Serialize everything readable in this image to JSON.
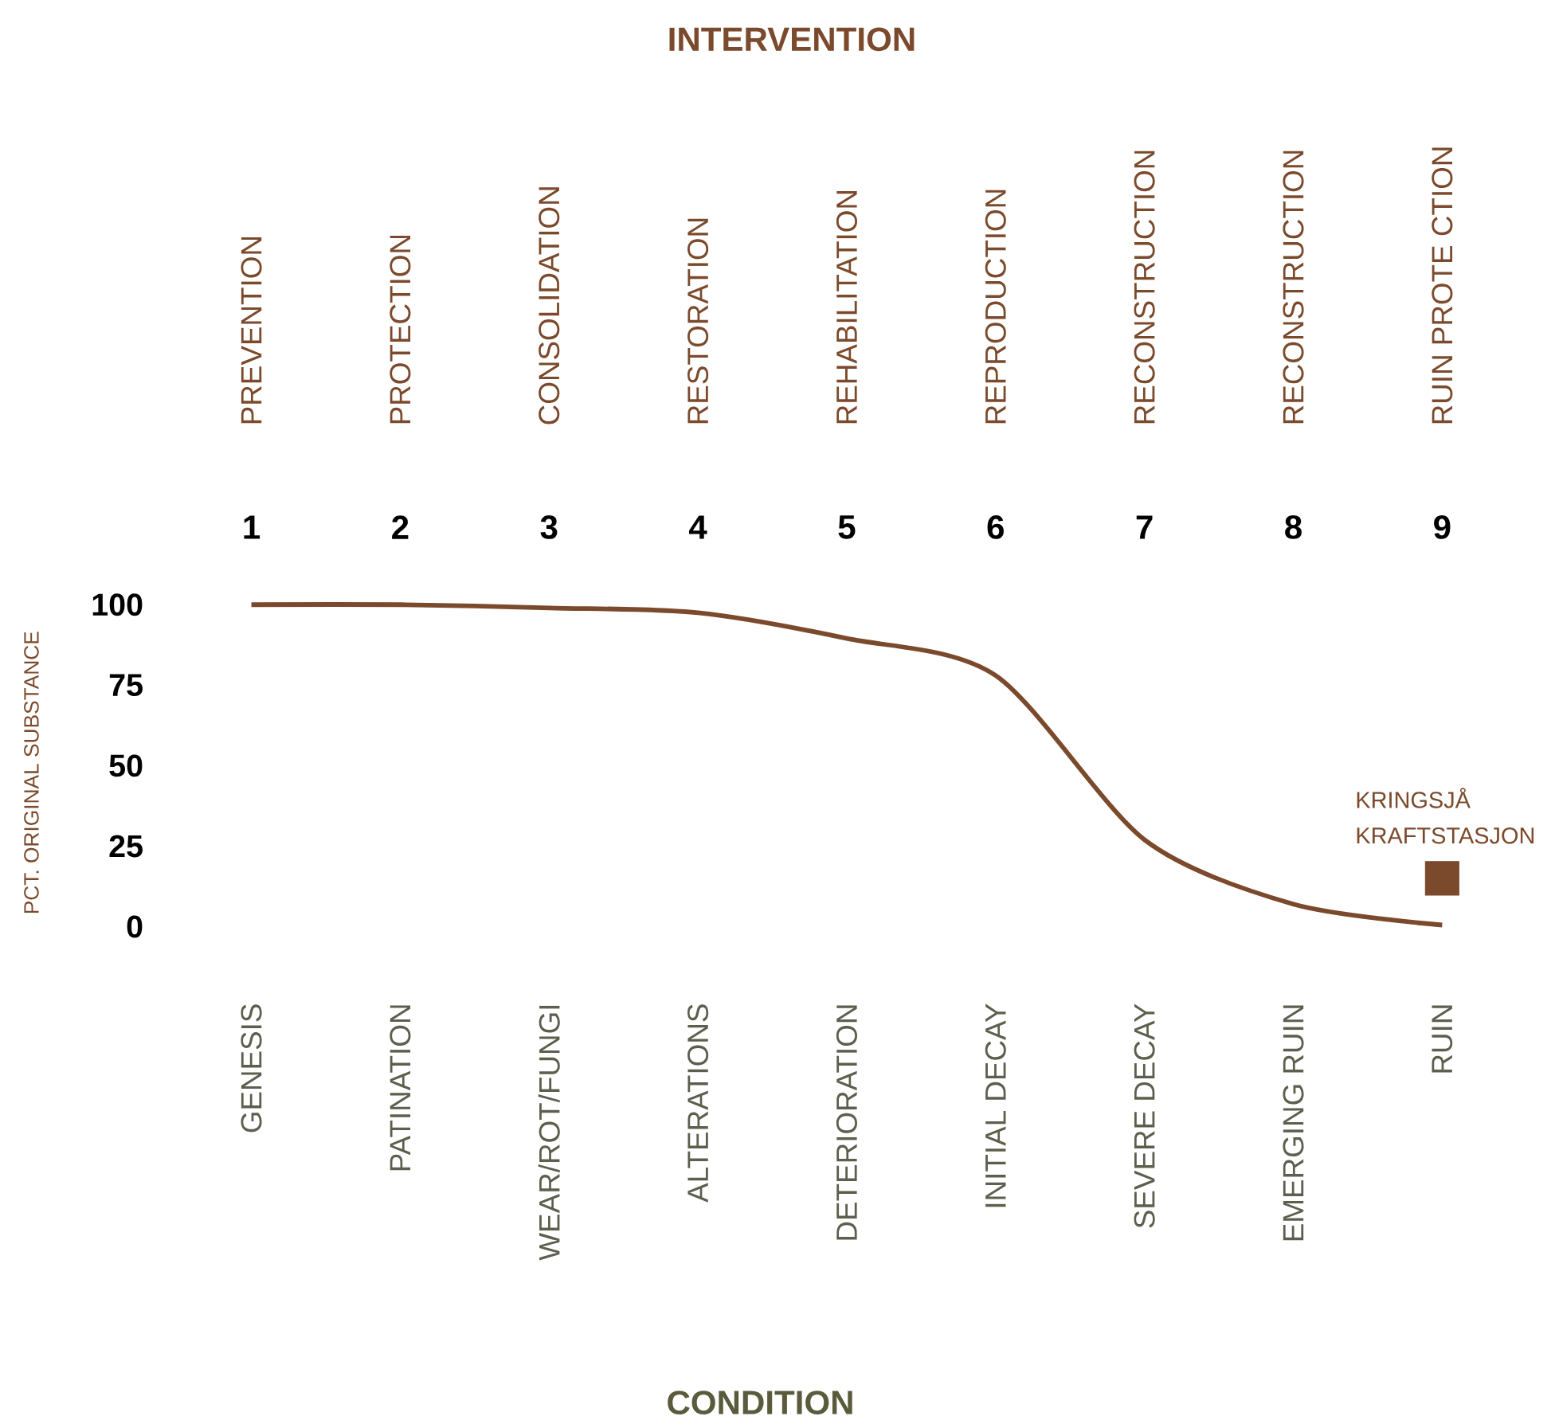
{
  "chart_data": {
    "type": "line",
    "xlabel": "CONDITION",
    "ylabel": "PCT. ORIGINAL SUBSTANCE",
    "title": "INTERVENTION",
    "categories": [
      "GENESIS",
      "PATINATION",
      "WEAR/ROT/FUNGI",
      "ALTERATIONS",
      "DETERIORATION",
      "INITIAL DECAY",
      "SEVERE DECAY",
      "EMERGING RUIN",
      "RUIN"
    ],
    "ylim": [
      0,
      100
    ],
    "yticks": [
      0,
      25,
      50,
      75,
      100
    ],
    "annotations": [
      "1",
      "2",
      "3",
      "4",
      "5",
      "6",
      "7",
      "8",
      "9",
      "PREVENTION",
      "PROTECTION",
      "CONSOLIDATION",
      "RESTORATION",
      "REHABILITATION",
      "REPRODUCTION",
      "RECONSTRUCTION",
      "RECONSTRUCTION",
      "RUIN PROTE CTION"
    ],
    "series": [
      {
        "color": "#7b4a2c",
        "line_style": "solid",
        "values": [
          100,
          100,
          99,
          97.5,
          89.5,
          78,
          27,
          7,
          0.5
        ]
      },
      {
        "type": "scatter",
        "name": "KRINGSJÅ KRAFTSTASJON",
        "color": "#7b4a2c",
        "marker": "square",
        "values": [
          null,
          null,
          null,
          null,
          null,
          null,
          null,
          null,
          15
        ]
      }
    ]
  }
}
